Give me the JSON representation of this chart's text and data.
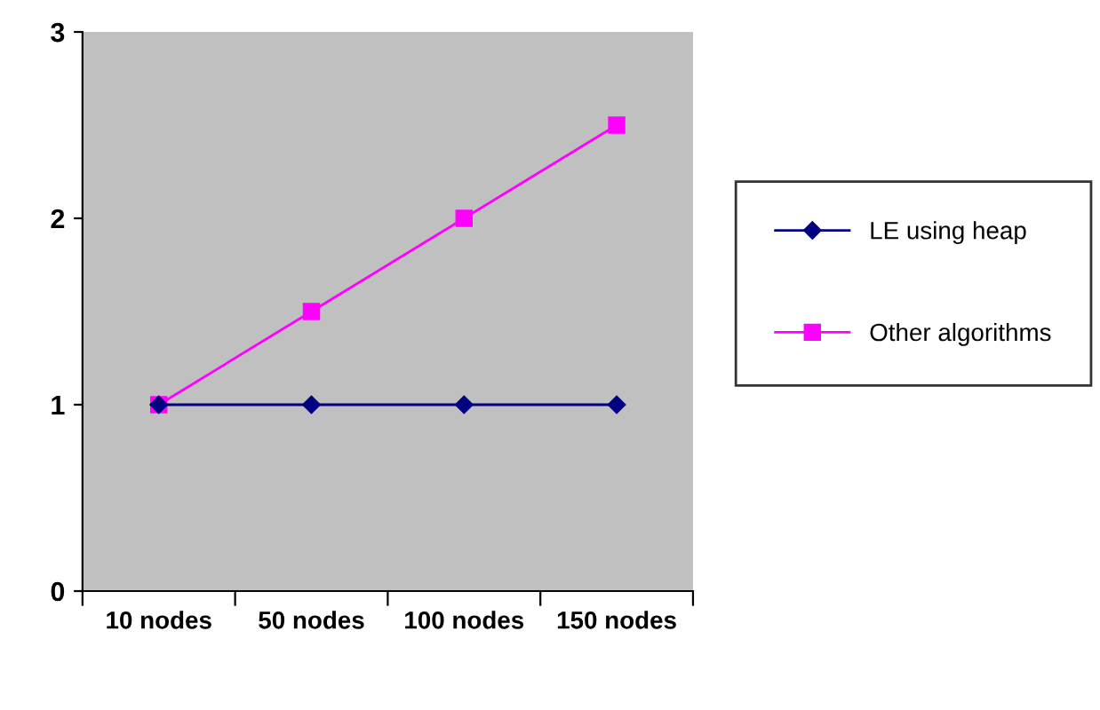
{
  "chart_data": {
    "type": "line",
    "categories": [
      "10 nodes",
      "50 nodes",
      "100 nodes",
      "150 nodes"
    ],
    "series": [
      {
        "name": "LE using heap",
        "color": "#000080",
        "marker": "diamond",
        "values": [
          1,
          1,
          1,
          1
        ]
      },
      {
        "name": "Other algorithms",
        "color": "#ff00ff",
        "marker": "square",
        "values": [
          1,
          1.5,
          2,
          2.5
        ]
      }
    ],
    "ylim": [
      0,
      3
    ],
    "yticks": [
      0,
      1,
      2,
      3
    ],
    "grid": false,
    "legend": "right"
  }
}
